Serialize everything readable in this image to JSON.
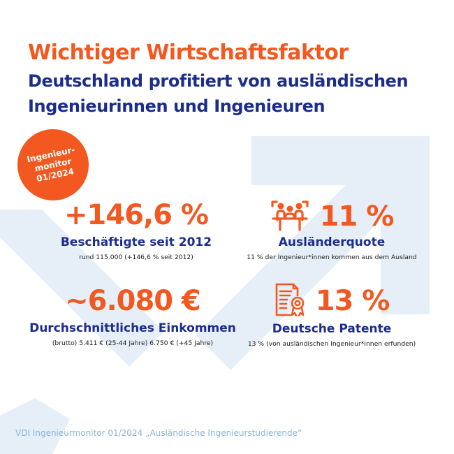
{
  "colors": {
    "orange": "#f2581f",
    "navy": "#1c2d8c",
    "light_blue": "#e6eff8",
    "footer_blue": "#8ab4de"
  },
  "header": {
    "title": "Wichtiger Wirtschaftsfaktor",
    "subtitle": "Deutschland profitiert von ausländischen Ingenieurinnen und Ingenieuren"
  },
  "badge": {
    "lines": [
      "Ingenieur-",
      "monitor",
      "01/2024"
    ]
  },
  "stats": {
    "employment": {
      "value": "+146,6 %",
      "title": "Beschäftigte seit 2012",
      "sub": "rund 115.000 (+146,6 % seit 2012)"
    },
    "foreign_quota": {
      "icon": "people-meeting-icon",
      "value": "11 %",
      "title": "Ausländerquote",
      "sub": "11 % der Ingenieur*innen kommen aus dem Ausland"
    },
    "income": {
      "value": "~6.080 €",
      "title": "Durchschnittliches Einkommen",
      "sub": "(brutto) 5.411 € (25-44 Jahre) 6.750 € (+45 Jahre)"
    },
    "patents": {
      "icon": "certificate-icon",
      "value": "13 %",
      "title": "Deutsche Patente",
      "sub": "13 % (von ausländischen Ingenieur*innen erfunden)"
    }
  },
  "footer": {
    "text": "VDI Ingenieurmonitor 01/2024 „Ausländische Ingenieurstudierende“"
  }
}
